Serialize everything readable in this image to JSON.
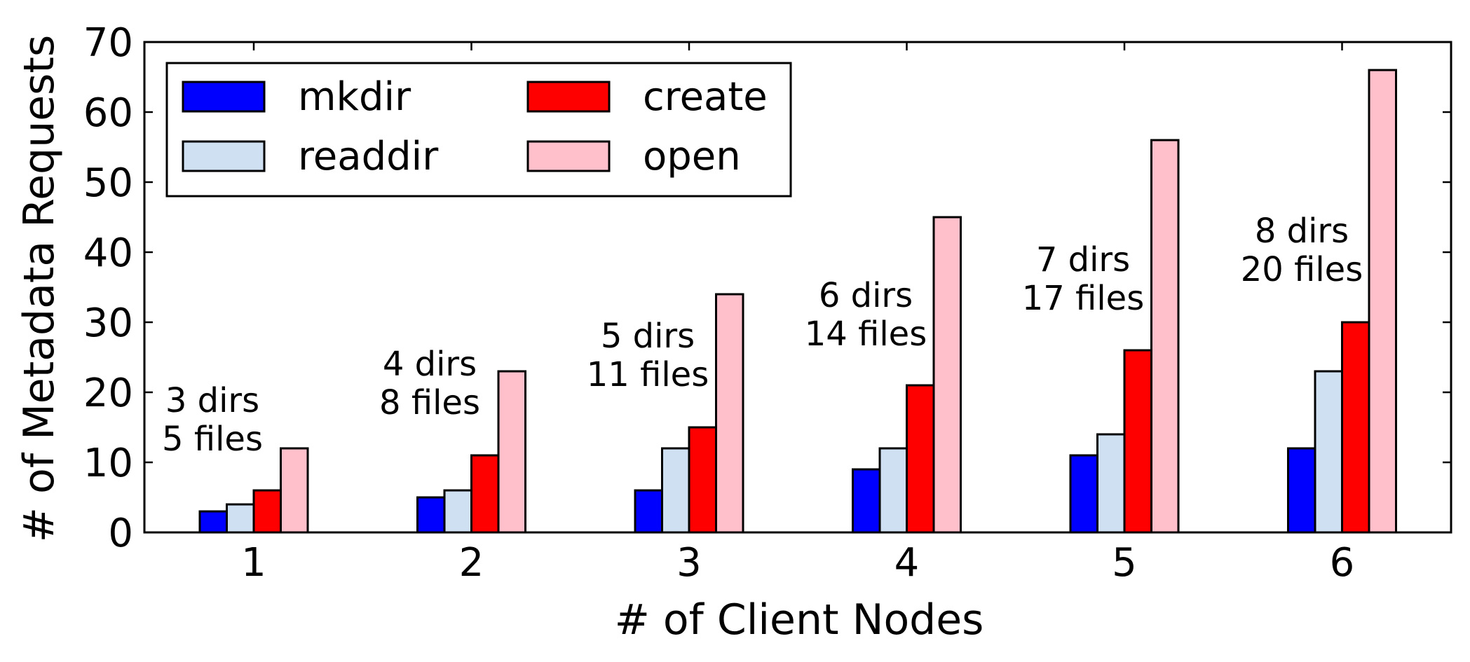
{
  "chart_data": {
    "type": "bar",
    "title": "",
    "xlabel": "# of Client Nodes",
    "ylabel": "# of Metadata Requests",
    "categories": [
      "1",
      "2",
      "3",
      "4",
      "5",
      "6"
    ],
    "ylim": [
      0,
      70
    ],
    "yticks": [
      "0",
      "10",
      "20",
      "30",
      "40",
      "50",
      "60",
      "70"
    ],
    "grid": false,
    "legend_position": "top-left",
    "series": [
      {
        "name": "mkdir",
        "color": "#0000ff",
        "values": [
          3,
          5,
          6,
          9,
          11,
          12
        ]
      },
      {
        "name": "readdir",
        "color": "#cfe0f2",
        "values": [
          4,
          6,
          12,
          12,
          14,
          23
        ]
      },
      {
        "name": "create",
        "color": "#ff0000",
        "values": [
          6,
          11,
          15,
          21,
          26,
          30
        ]
      },
      {
        "name": "open",
        "color": "#ffc0cb",
        "values": [
          12,
          23,
          34,
          45,
          56,
          66
        ]
      }
    ],
    "annotations": [
      {
        "category": "1",
        "lines": [
          "3 dirs",
          "5 files"
        ]
      },
      {
        "category": "2",
        "lines": [
          "4 dirs",
          "8 files"
        ]
      },
      {
        "category": "3",
        "lines": [
          "5 dirs",
          "11 files"
        ]
      },
      {
        "category": "4",
        "lines": [
          "6 dirs",
          "14 files"
        ]
      },
      {
        "category": "5",
        "lines": [
          "7 dirs",
          "17 files"
        ]
      },
      {
        "category": "6",
        "lines": [
          "8 dirs",
          "20 files"
        ]
      }
    ]
  }
}
